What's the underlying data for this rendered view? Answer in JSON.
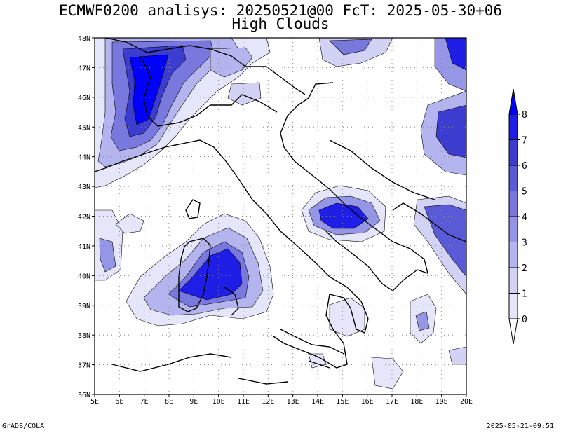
{
  "header": {
    "title": "ECMWF0200 analisys: 20250521@00 FcT: 2025-05-30+06",
    "subtitle": "High Clouds"
  },
  "axes": {
    "lon_labels": [
      "5E",
      "6E",
      "7E",
      "8E",
      "9E",
      "10E",
      "11E",
      "12E",
      "13E",
      "14E",
      "15E",
      "16E",
      "17E",
      "18E",
      "19E",
      "20E"
    ],
    "lat_labels": [
      "36N",
      "37N",
      "38N",
      "39N",
      "40N",
      "41N",
      "42N",
      "43N",
      "44N",
      "45N",
      "46N",
      "47N",
      "48N"
    ],
    "lon_range": [
      5,
      20
    ],
    "lat_range": [
      36,
      48
    ]
  },
  "colorbar": {
    "levels": [
      "0",
      "1",
      "2",
      "3",
      "4",
      "5",
      "6",
      "7",
      "8"
    ],
    "colors": [
      "#e6e6fa",
      "#d2d2f5",
      "#b4b4ee",
      "#9696e6",
      "#7878de",
      "#5a5ad6",
      "#3c3ccf",
      "#1e1ee6",
      "#0000ff"
    ]
  },
  "footer": {
    "left": "GrADS/COLA",
    "right": "2025-05-21-09:51"
  }
}
